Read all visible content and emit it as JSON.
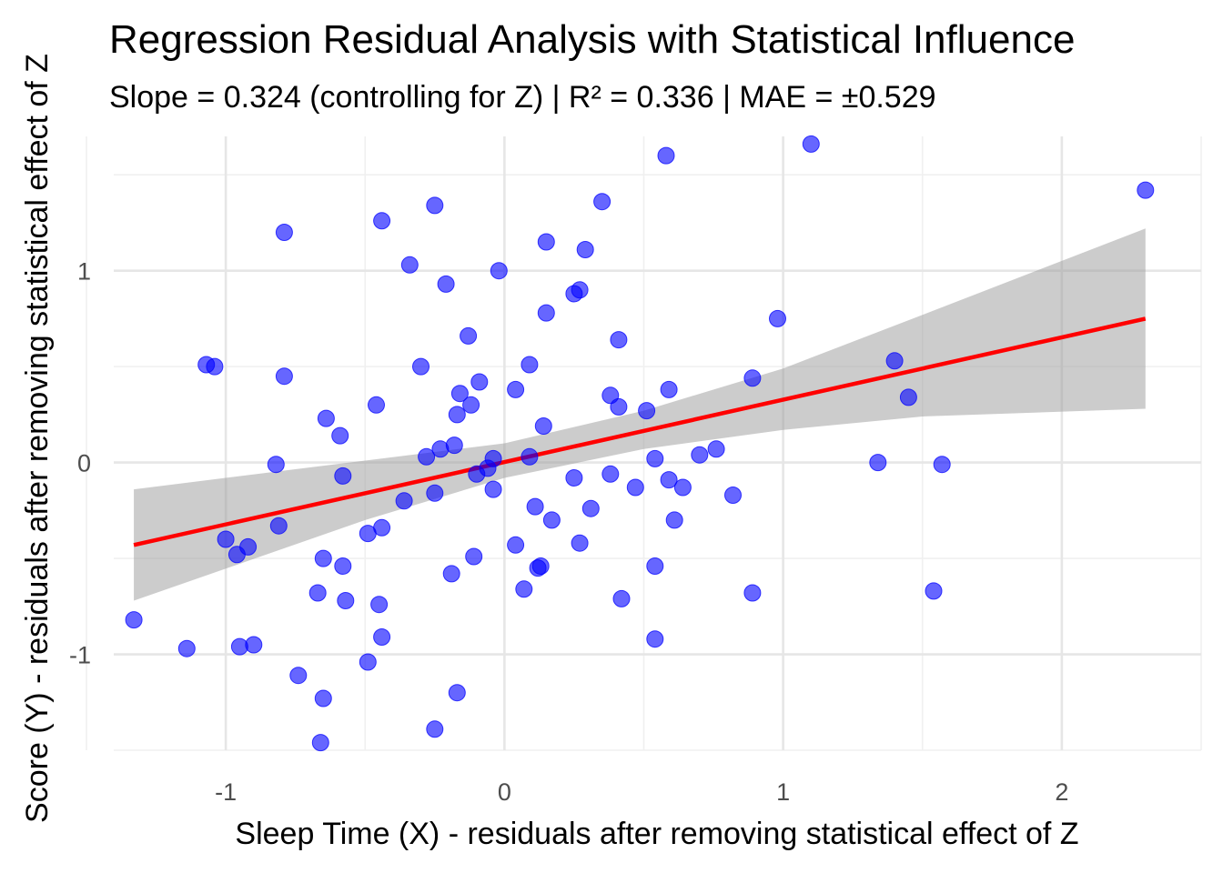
{
  "chart_data": {
    "type": "scatter",
    "title": "Regression Residual Analysis with Statistical Influence",
    "subtitle": "Slope = 0.324 (controlling for Z) | R² = 0.336 | MAE = ±0.529",
    "xlabel": "Sleep Time (X) - residuals after removing statistical effect of Z",
    "ylabel": "Score (Y) - residuals after removing statistical effect of Z",
    "xlim": [
      -1.5,
      2.5
    ],
    "ylim": [
      -1.5,
      1.7
    ],
    "x_ticks": [
      -1,
      0,
      1,
      2
    ],
    "x_tick_labels": [
      "-1",
      "0",
      "1",
      "2"
    ],
    "y_ticks": [
      -1,
      0,
      1
    ],
    "y_tick_labels": [
      "-1",
      "0",
      "1"
    ],
    "grid": true,
    "colors": {
      "points": "#0000ff",
      "fit_line": "#ff0000",
      "confidence_band": "#999999"
    },
    "series": [
      {
        "values": [
          {
            "x": -1.33,
            "y": -0.82
          },
          {
            "x": -1.14,
            "y": -0.97
          },
          {
            "x": -1.07,
            "y": 0.51
          },
          {
            "x": -1.04,
            "y": 0.5
          },
          {
            "x": -1.0,
            "y": -0.4
          },
          {
            "x": -0.96,
            "y": -0.48
          },
          {
            "x": -0.95,
            "y": -0.96
          },
          {
            "x": -0.92,
            "y": -0.44
          },
          {
            "x": -0.9,
            "y": -0.95
          },
          {
            "x": -0.82,
            "y": -0.01
          },
          {
            "x": -0.81,
            "y": -0.33
          },
          {
            "x": -0.79,
            "y": 1.2
          },
          {
            "x": -0.79,
            "y": 0.45
          },
          {
            "x": -0.74,
            "y": -1.11
          },
          {
            "x": -0.67,
            "y": -0.68
          },
          {
            "x": -0.66,
            "y": -1.46
          },
          {
            "x": -0.65,
            "y": -1.23
          },
          {
            "x": -0.65,
            "y": -0.5
          },
          {
            "x": -0.64,
            "y": 0.23
          },
          {
            "x": -0.59,
            "y": 0.14
          },
          {
            "x": -0.58,
            "y": -0.54
          },
          {
            "x": -0.58,
            "y": -0.07
          },
          {
            "x": -0.57,
            "y": -0.72
          },
          {
            "x": -0.49,
            "y": -0.37
          },
          {
            "x": -0.49,
            "y": -1.04
          },
          {
            "x": -0.46,
            "y": 0.3
          },
          {
            "x": -0.45,
            "y": -0.74
          },
          {
            "x": -0.44,
            "y": -0.91
          },
          {
            "x": -0.44,
            "y": 1.26
          },
          {
            "x": -0.44,
            "y": -0.34
          },
          {
            "x": -0.36,
            "y": -0.2
          },
          {
            "x": -0.34,
            "y": 1.03
          },
          {
            "x": -0.3,
            "y": 0.5
          },
          {
            "x": -0.28,
            "y": 0.03
          },
          {
            "x": -0.25,
            "y": 1.34
          },
          {
            "x": -0.25,
            "y": -0.16
          },
          {
            "x": -0.25,
            "y": -1.39
          },
          {
            "x": -0.23,
            "y": 0.07
          },
          {
            "x": -0.21,
            "y": 0.93
          },
          {
            "x": -0.19,
            "y": -0.58
          },
          {
            "x": -0.18,
            "y": 0.09
          },
          {
            "x": -0.16,
            "y": 0.36
          },
          {
            "x": -0.17,
            "y": -1.2
          },
          {
            "x": -0.17,
            "y": 0.25
          },
          {
            "x": -0.13,
            "y": 0.66
          },
          {
            "x": -0.12,
            "y": 0.3
          },
          {
            "x": -0.11,
            "y": -0.49
          },
          {
            "x": -0.1,
            "y": -0.06
          },
          {
            "x": -0.09,
            "y": 0.42
          },
          {
            "x": -0.06,
            "y": -0.03
          },
          {
            "x": -0.04,
            "y": 0.02
          },
          {
            "x": -0.04,
            "y": -0.14
          },
          {
            "x": -0.02,
            "y": 1.0
          },
          {
            "x": 0.04,
            "y": 0.38
          },
          {
            "x": 0.04,
            "y": -0.43
          },
          {
            "x": 0.07,
            "y": -0.66
          },
          {
            "x": 0.09,
            "y": 0.51
          },
          {
            "x": 0.09,
            "y": 0.03
          },
          {
            "x": 0.11,
            "y": -0.23
          },
          {
            "x": 0.12,
            "y": -0.55
          },
          {
            "x": 0.13,
            "y": -0.54
          },
          {
            "x": 0.14,
            "y": 0.19
          },
          {
            "x": 0.15,
            "y": 0.78
          },
          {
            "x": 0.15,
            "y": 1.15
          },
          {
            "x": 0.17,
            "y": -0.3
          },
          {
            "x": 0.25,
            "y": -0.08
          },
          {
            "x": 0.25,
            "y": 0.88
          },
          {
            "x": 0.27,
            "y": 0.9
          },
          {
            "x": 0.27,
            "y": -0.42
          },
          {
            "x": 0.29,
            "y": 1.11
          },
          {
            "x": 0.31,
            "y": -0.24
          },
          {
            "x": 0.35,
            "y": 1.36
          },
          {
            "x": 0.38,
            "y": 0.35
          },
          {
            "x": 0.38,
            "y": -0.06
          },
          {
            "x": 0.41,
            "y": 0.64
          },
          {
            "x": 0.41,
            "y": 0.29
          },
          {
            "x": 0.42,
            "y": -0.71
          },
          {
            "x": 0.47,
            "y": -0.13
          },
          {
            "x": 0.51,
            "y": 0.27
          },
          {
            "x": 0.54,
            "y": 0.02
          },
          {
            "x": 0.54,
            "y": -0.54
          },
          {
            "x": 0.54,
            "y": -0.92
          },
          {
            "x": 0.58,
            "y": 1.6
          },
          {
            "x": 0.59,
            "y": 0.38
          },
          {
            "x": 0.59,
            "y": -0.09
          },
          {
            "x": 0.61,
            "y": -0.3
          },
          {
            "x": 0.64,
            "y": -0.13
          },
          {
            "x": 0.7,
            "y": 0.04
          },
          {
            "x": 0.76,
            "y": 0.07
          },
          {
            "x": 0.82,
            "y": -0.17
          },
          {
            "x": 0.89,
            "y": 0.44
          },
          {
            "x": 0.89,
            "y": -0.68
          },
          {
            "x": 0.98,
            "y": 0.75
          },
          {
            "x": 1.1,
            "y": 1.66
          },
          {
            "x": 1.34,
            "y": 0.0
          },
          {
            "x": 1.4,
            "y": 0.53
          },
          {
            "x": 1.45,
            "y": 0.34
          },
          {
            "x": 1.54,
            "y": -0.67
          },
          {
            "x": 1.57,
            "y": -0.01
          },
          {
            "x": 2.3,
            "y": 1.42
          }
        ]
      }
    ],
    "fit_line": {
      "x": [
        -1.33,
        2.3
      ],
      "y": [
        -0.43,
        0.75
      ]
    },
    "confidence_band": {
      "x": [
        -1.33,
        -0.5,
        0.0,
        0.5,
        1.0,
        1.5,
        2.3
      ],
      "lower": [
        -0.72,
        -0.3,
        -0.08,
        0.07,
        0.17,
        0.24,
        0.28
      ],
      "upper": [
        -0.14,
        0.01,
        0.1,
        0.27,
        0.49,
        0.77,
        1.22
      ]
    }
  }
}
